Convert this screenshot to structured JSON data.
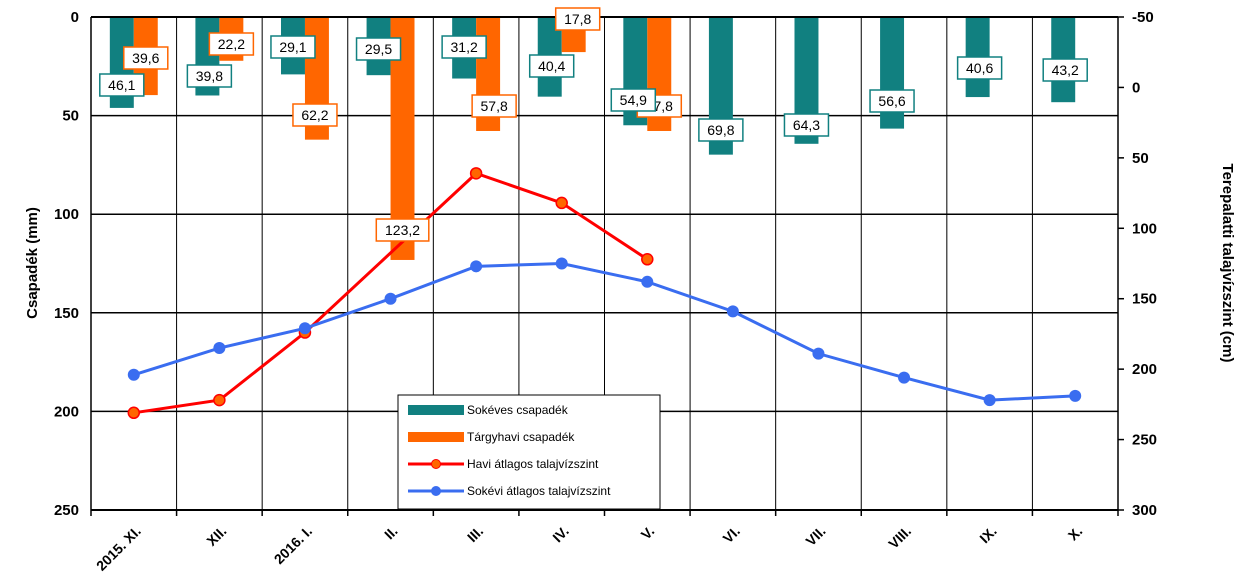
{
  "chart_data": {
    "type": "bar",
    "categories": [
      "2015. XI.",
      "XII.",
      "2016. I.",
      "II.",
      "III.",
      "IV.",
      "V.",
      "VI.",
      "VII.",
      "VIII.",
      "IX.",
      "X."
    ],
    "ylabel": "Csapadék (mm)",
    "y2label": "Terepalatti talajvízszint (cm)",
    "ylim": [
      0,
      250
    ],
    "y2lim": [
      -50,
      300
    ],
    "y_ticks": [
      "0",
      "50",
      "100",
      "150",
      "200",
      "250"
    ],
    "y2_ticks": [
      "-50",
      "0",
      "50",
      "100",
      "150",
      "200",
      "250",
      "300"
    ],
    "y_inverted": true,
    "y2_inverted": true,
    "grid": true,
    "legend_position": "bottom-center",
    "series": [
      {
        "name": "Sokéves csapadék",
        "type": "bar",
        "axis": "left",
        "color": "#118080",
        "values": [
          46.1,
          39.8,
          29.1,
          29.5,
          31.2,
          40.4,
          54.9,
          69.8,
          64.3,
          56.6,
          40.6,
          43.2
        ],
        "labels": [
          "46,1",
          "39,8",
          "29,1",
          "29,5",
          "31,2",
          "40,4",
          "54,9",
          "69,8",
          "64,3",
          "56,6",
          "40,6",
          "43,2"
        ]
      },
      {
        "name": "Tárgyhavi csapadék",
        "type": "bar",
        "axis": "left",
        "color": "#ff6600",
        "values": [
          39.6,
          22.2,
          62.2,
          123.2,
          57.8,
          17.8,
          57.8,
          null,
          null,
          null,
          null,
          null
        ],
        "labels": [
          "39,6",
          "22,2",
          "62,2",
          "123,2",
          "57,8",
          "17,8",
          "57,8",
          null,
          null,
          null,
          null,
          null
        ]
      },
      {
        "name": "Havi átlagos talajvízszint",
        "type": "line",
        "axis": "right",
        "color": "#ff0000",
        "marker_color": "#ff6600",
        "values": [
          231,
          222,
          174,
          null,
          61,
          82,
          122,
          null,
          null,
          null,
          null,
          null
        ]
      },
      {
        "name": "Sokévi átlagos talajvízszint",
        "type": "line",
        "axis": "right",
        "color": "#3a6df0",
        "values": [
          204,
          185,
          171,
          150,
          127,
          125,
          138,
          159,
          189,
          206,
          222,
          219
        ]
      }
    ]
  }
}
